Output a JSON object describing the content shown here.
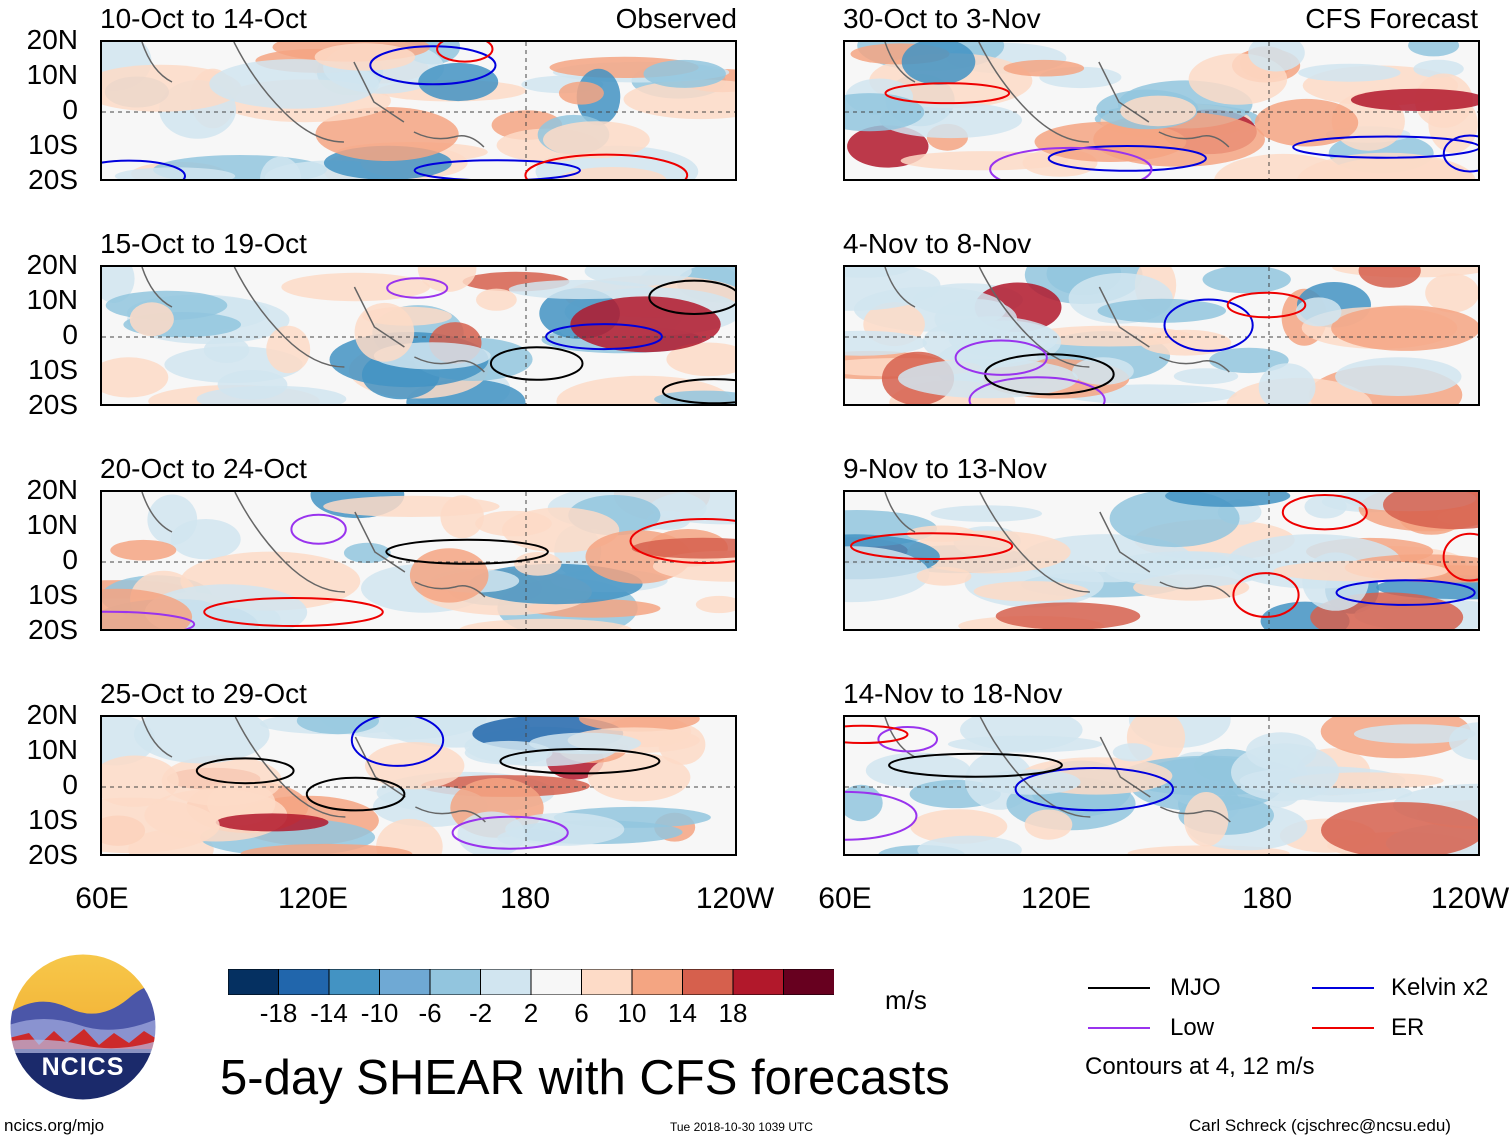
{
  "labels": {
    "observed": "Observed",
    "forecast": "CFS Forecast",
    "main_title": "5-day SHEAR with CFS forecasts",
    "units": "m/s",
    "contours_note": "Contours at 4, 12 m/s",
    "site_url": "ncics.org/mjo",
    "timestamp": "Tue 2018-10-30 1039 UTC",
    "credit": "Carl Schreck (cjschrec@ncsu.edu)",
    "logo_text": "NCICS"
  },
  "y_ticks": [
    "20N",
    "10N",
    "0",
    "10S",
    "20S"
  ],
  "x_ticks": [
    "60E",
    "120E",
    "180",
    "120W"
  ],
  "panels_left": [
    {
      "title": "10-Oct to 14-Oct"
    },
    {
      "title": "15-Oct to 19-Oct"
    },
    {
      "title": "20-Oct to 24-Oct"
    },
    {
      "title": "25-Oct to 29-Oct"
    }
  ],
  "panels_right": [
    {
      "title": "30-Oct to 3-Nov"
    },
    {
      "title": "4-Nov to 8-Nov"
    },
    {
      "title": "9-Nov to 13-Nov"
    },
    {
      "title": "14-Nov to 18-Nov"
    }
  ],
  "colorbar": {
    "ticks": [
      "-18",
      "-14",
      "-10",
      "-6",
      "-2",
      "2",
      "6",
      "10",
      "14",
      "18"
    ],
    "colors": [
      "#053061",
      "#2166ac",
      "#4393c3",
      "#6fa9d4",
      "#92c5de",
      "#d1e5f0",
      "#f7f7f7",
      "#fddbc7",
      "#f4a582",
      "#d6604d",
      "#b2182b",
      "#67001f"
    ]
  },
  "legend": {
    "items": [
      {
        "label": "MJO",
        "color": "#000000"
      },
      {
        "label": "Kelvin x2",
        "color": "#0000dd"
      },
      {
        "label": "Low",
        "color": "#9933ee"
      },
      {
        "label": "ER",
        "color": "#ee0000"
      }
    ]
  }
}
